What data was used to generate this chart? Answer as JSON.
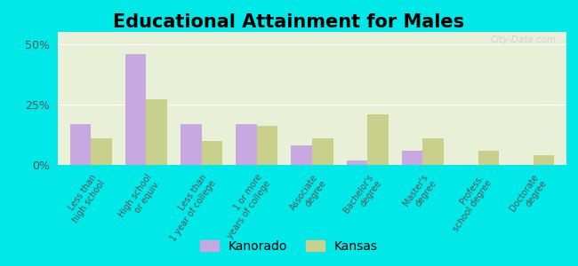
{
  "title": "Educational Attainment for Males",
  "categories": [
    "Less than\nhigh school",
    "High school\nor equiv.",
    "Less than\n1 year of college",
    "1 or more\nyears of college",
    "Associate\ndegree",
    "Bachelor's\ndegree",
    "Master's\ndegree",
    "Profess.\nschool degree",
    "Doctorate\ndegree"
  ],
  "kanorado": [
    17.0,
    46.0,
    17.0,
    17.0,
    8.0,
    2.0,
    6.0,
    0.0,
    0.0
  ],
  "kansas": [
    11.0,
    27.0,
    10.0,
    16.0,
    11.0,
    21.0,
    11.0,
    6.0,
    4.0
  ],
  "kanorado_color": "#c8a8e0",
  "kansas_color": "#c8d08c",
  "background_plot": "#e8f0d8",
  "background_fig": "#00e8e8",
  "ylim": [
    0,
    55
  ],
  "yticks": [
    0,
    25,
    50
  ],
  "ytick_labels": [
    "0%",
    "25%",
    "50%"
  ],
  "title_fontsize": 15,
  "bar_width": 0.38,
  "legend_kanorado": "Kanorado",
  "legend_kansas": "Kansas"
}
